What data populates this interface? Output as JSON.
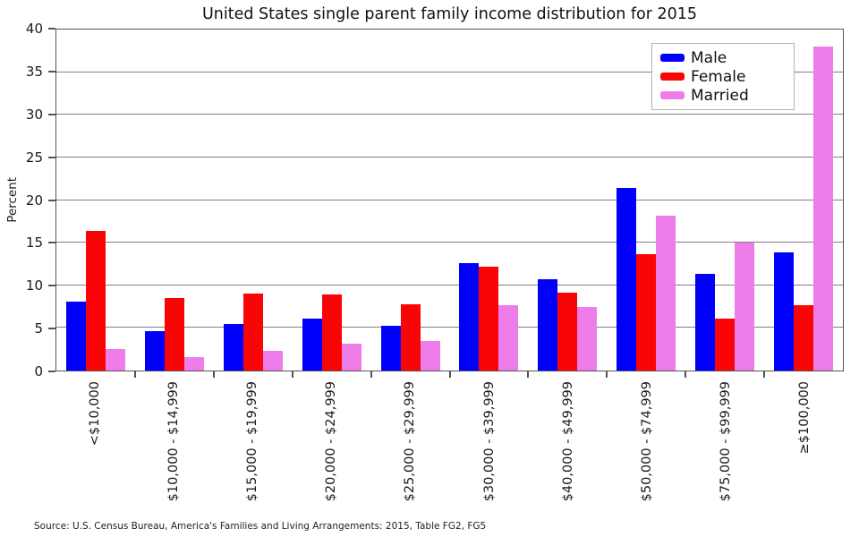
{
  "title": "United States single parent family income distribution for 2015",
  "source_note": "Source: U.S. Census Bureau, America's Families and Living Arrangements: 2015, Table FG2, FG5",
  "colors": {
    "male": "#0000fa",
    "female": "#fa0505",
    "married": "#ee7de9",
    "gridline": "#808080",
    "axis_border": "#545454",
    "legend_border": "#b3b3b3",
    "background": "#ffffff"
  },
  "chart_data": {
    "type": "bar",
    "title": "United States single parent family income distribution for 2015",
    "xlabel": "",
    "ylabel": "Percent",
    "ylim": [
      0,
      40
    ],
    "yticks": [
      0,
      5,
      10,
      15,
      20,
      25,
      30,
      35,
      40
    ],
    "grid": true,
    "legend_position": "top-right",
    "categories": [
      "<$10,000",
      "$10,000 - $14,999",
      "$15,000 - $19,999",
      "$20,000 - $24,999",
      "$25,000 - $29,999",
      "$30,000 - $39,999",
      "$40,000 - $49,999",
      "$50,000 - $74,999",
      "$75,000 - $99,999",
      "≥$100,000"
    ],
    "series": [
      {
        "name": "Male",
        "color": "#0000fa",
        "values": [
          8.1,
          4.6,
          5.5,
          6.1,
          5.2,
          12.6,
          10.7,
          21.4,
          11.3,
          13.9
        ]
      },
      {
        "name": "Female",
        "color": "#fa0505",
        "values": [
          16.4,
          8.5,
          9.0,
          8.9,
          7.8,
          12.2,
          9.1,
          13.7,
          6.1,
          7.7
        ]
      },
      {
        "name": "Married",
        "color": "#ee7de9",
        "values": [
          2.5,
          1.6,
          2.3,
          3.1,
          3.5,
          7.7,
          7.5,
          18.2,
          15.0,
          38.0
        ]
      }
    ]
  }
}
